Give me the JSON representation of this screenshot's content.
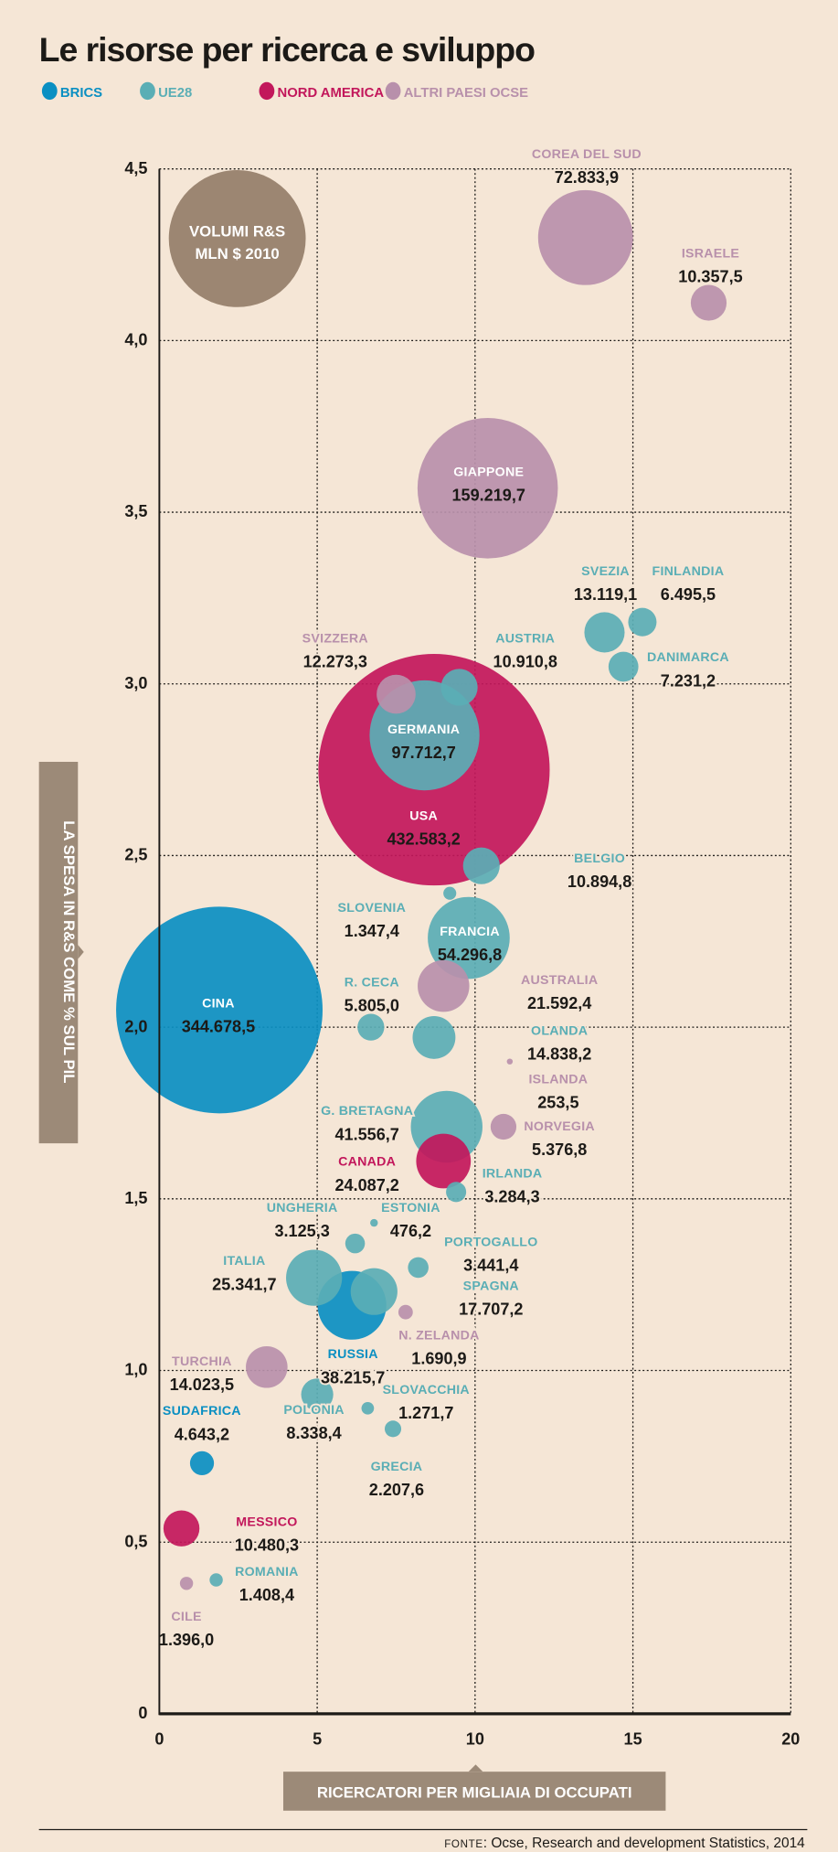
{
  "title": "Le risorse per ricerca e sviluppo",
  "chart_data": {
    "type": "scatter",
    "title": "Le risorse per ricerca e sviluppo",
    "xlabel": "RICERCATORI PER MIGLIAIA DI OCCUPATI",
    "ylabel": "LA SPESA IN R&S COME % SUL PIL",
    "xlim": [
      0,
      20
    ],
    "ylim": [
      0,
      4.5
    ],
    "x_ticks": [
      "0",
      "5",
      "10",
      "15",
      "20"
    ],
    "y_ticks": [
      "0",
      "0,5",
      "1,0",
      "1,5",
      "2,0",
      "2,5",
      "3,0",
      "3,5",
      "4,0",
      "4,5"
    ],
    "grid": true,
    "legend_position": "top-left",
    "size_legend": [
      "VOLUMI R&S",
      "MLN $ 2010"
    ],
    "groups": [
      {
        "key": "brics",
        "name": "BRICS",
        "color": "#0a8fc2"
      },
      {
        "key": "ue28",
        "name": "UE28",
        "color": "#5aaeb5"
      },
      {
        "key": "nam",
        "name": "NORD AMERICA",
        "color": "#c2175b"
      },
      {
        "key": "ocse",
        "name": "ALTRI PAESI OCSE",
        "color": "#b890ab"
      }
    ],
    "points": [
      {
        "name": "COREA DEL SUD",
        "group": "ocse",
        "x": 13.5,
        "y": 4.3,
        "size": 72833.9,
        "label": "72.833,9"
      },
      {
        "name": "ISRAELE",
        "group": "ocse",
        "x": 17.4,
        "y": 4.11,
        "size": 10357.5,
        "label": "10.357,5"
      },
      {
        "name": "GIAPPONE",
        "group": "ocse",
        "x": 10.4,
        "y": 3.57,
        "size": 159219.7,
        "label": "159.219,7"
      },
      {
        "name": "SVEZIA",
        "group": "ue28",
        "x": 14.1,
        "y": 3.15,
        "size": 13119.1,
        "label": "13.119,1"
      },
      {
        "name": "FINLANDIA",
        "group": "ue28",
        "x": 15.3,
        "y": 3.18,
        "size": 6495.5,
        "label": "6.495,5"
      },
      {
        "name": "DANIMARCA",
        "group": "ue28",
        "x": 14.7,
        "y": 3.05,
        "size": 7231.2,
        "label": "7.231,2"
      },
      {
        "name": "USA",
        "group": "nam",
        "x": 8.7,
        "y": 2.75,
        "size": 432583.2,
        "label": "432.583,2"
      },
      {
        "name": "GERMANIA",
        "group": "ue28",
        "x": 8.4,
        "y": 2.85,
        "size": 97712.7,
        "label": "97.712,7"
      },
      {
        "name": "SVIZZERA",
        "group": "ocse",
        "x": 7.5,
        "y": 2.97,
        "size": 12273.3,
        "label": "12.273,3"
      },
      {
        "name": "AUSTRIA",
        "group": "ue28",
        "x": 9.5,
        "y": 2.99,
        "size": 10910.8,
        "label": "10.910,8"
      },
      {
        "name": "BELGIO",
        "group": "ue28",
        "x": 10.2,
        "y": 2.47,
        "size": 10894.8,
        "label": "10.894,8"
      },
      {
        "name": "SLOVENIA",
        "group": "ue28",
        "x": 9.2,
        "y": 2.39,
        "size": 1347.4,
        "label": "1.347,4"
      },
      {
        "name": "FRANCIA",
        "group": "ue28",
        "x": 9.8,
        "y": 2.26,
        "size": 54296.8,
        "label": "54.296,8"
      },
      {
        "name": "AUSTRALIA",
        "group": "ocse",
        "x": 9.0,
        "y": 2.12,
        "size": 21592.4,
        "label": "21.592,4"
      },
      {
        "name": "CINA",
        "group": "brics",
        "x": 1.9,
        "y": 2.05,
        "size": 344678.5,
        "label": "344.678,5"
      },
      {
        "name": "R. CECA",
        "group": "ue28",
        "x": 6.7,
        "y": 2.0,
        "size": 5805.0,
        "label": "5.805,0"
      },
      {
        "name": "OLANDA",
        "group": "ue28",
        "x": 8.7,
        "y": 1.97,
        "size": 14838.2,
        "label": "14.838,2"
      },
      {
        "name": "ISLANDA",
        "group": "ocse",
        "x": 11.1,
        "y": 1.9,
        "size": 253.5,
        "label": "253,5"
      },
      {
        "name": "G. BRETAGNA",
        "group": "ue28",
        "x": 9.1,
        "y": 1.71,
        "size": 41556.7,
        "label": "41.556,7"
      },
      {
        "name": "NORVEGIA",
        "group": "ocse",
        "x": 10.9,
        "y": 1.71,
        "size": 5376.8,
        "label": "5.376,8"
      },
      {
        "name": "CANADA",
        "group": "nam",
        "x": 9.0,
        "y": 1.61,
        "size": 24087.2,
        "label": "24.087,2"
      },
      {
        "name": "IRLANDA",
        "group": "ue28",
        "x": 9.4,
        "y": 1.52,
        "size": 3284.3,
        "label": "3.284,3"
      },
      {
        "name": "ESTONIA",
        "group": "ue28",
        "x": 6.8,
        "y": 1.43,
        "size": 476.2,
        "label": "476,2"
      },
      {
        "name": "UNGHERIA",
        "group": "ue28",
        "x": 6.2,
        "y": 1.37,
        "size": 3125.3,
        "label": "3.125,3"
      },
      {
        "name": "ITALIA",
        "group": "ue28",
        "x": 4.9,
        "y": 1.27,
        "size": 25341.7,
        "label": "25.341,7"
      },
      {
        "name": "PORTOGALLO",
        "group": "ue28",
        "x": 8.2,
        "y": 1.3,
        "size": 3441.4,
        "label": "3.441,4"
      },
      {
        "name": "SPAGNA",
        "group": "ue28",
        "x": 6.8,
        "y": 1.23,
        "size": 17707.2,
        "label": "17.707,2"
      },
      {
        "name": "RUSSIA",
        "group": "brics",
        "x": 6.1,
        "y": 1.19,
        "size": 38215.7,
        "label": "38.215,7"
      },
      {
        "name": "N. ZELANDA",
        "group": "ocse",
        "x": 7.8,
        "y": 1.17,
        "size": 1690.9,
        "label": "1.690,9"
      },
      {
        "name": "TURCHIA",
        "group": "ocse",
        "x": 3.4,
        "y": 1.01,
        "size": 14023.5,
        "label": "14.023,5"
      },
      {
        "name": "POLONIA",
        "group": "ue28",
        "x": 5.0,
        "y": 0.93,
        "size": 8338.4,
        "label": "8.338,4"
      },
      {
        "name": "SLOVACCHIA",
        "group": "ue28",
        "x": 6.6,
        "y": 0.89,
        "size": 1271.7,
        "label": "1.271,7"
      },
      {
        "name": "GRECIA",
        "group": "ue28",
        "x": 7.4,
        "y": 0.83,
        "size": 2207.6,
        "label": "2.207,6"
      },
      {
        "name": "SUDAFRICA",
        "group": "brics",
        "x": 1.35,
        "y": 0.73,
        "size": 4643.2,
        "label": "4.643,2"
      },
      {
        "name": "MESSICO",
        "group": "nam",
        "x": 0.7,
        "y": 0.54,
        "size": 10480.3,
        "label": "10.480,3"
      },
      {
        "name": "ROMANIA",
        "group": "ue28",
        "x": 1.8,
        "y": 0.39,
        "size": 1408.4,
        "label": "1.408,4"
      },
      {
        "name": "CILE",
        "group": "ocse",
        "x": 0.86,
        "y": 0.38,
        "size": 1396.0,
        "label": "1.396,0"
      }
    ]
  },
  "source": {
    "prefix": "FONTE",
    "text": ": Ocse, Research and development Statistics, 2014"
  }
}
